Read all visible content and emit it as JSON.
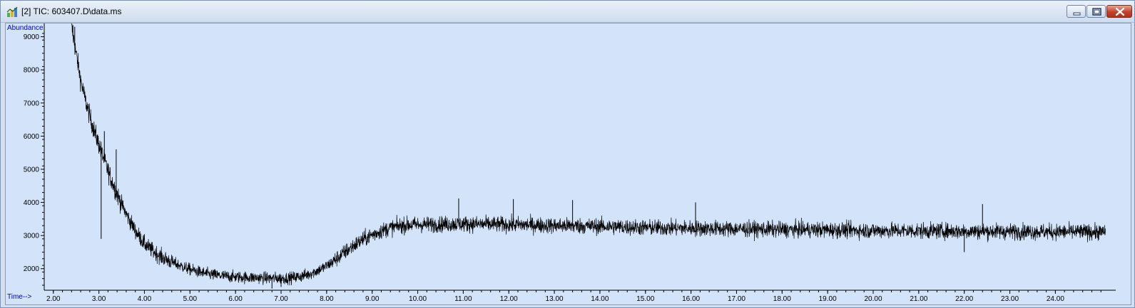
{
  "window": {
    "title": "[2] TIC: 603407.D\\data.ms",
    "controls": [
      "minimize",
      "maximize",
      "close"
    ]
  },
  "colors": {
    "plot_background": "#d3e3f9",
    "trace": "#000000",
    "axis_label": "#0000cc"
  },
  "chart_data": {
    "type": "line",
    "title": "",
    "xlabel": "Time-->",
    "ylabel": "Abundance",
    "xlim": [
      1.8,
      25.2
    ],
    "ylim": [
      1350,
      9400
    ],
    "x_ticks": [
      "2.00",
      "3.00",
      "4.00",
      "5.00",
      "6.00",
      "7.00",
      "8.00",
      "9.00",
      "10.00",
      "11.00",
      "12.00",
      "13.00",
      "14.00",
      "15.00",
      "16.00",
      "17.00",
      "18.00",
      "19.00",
      "20.00",
      "21.00",
      "22.00",
      "23.00",
      "24.00"
    ],
    "y_ticks": [
      "2000",
      "3000",
      "4000",
      "5000",
      "6000",
      "7000",
      "8000",
      "9000"
    ],
    "grid": false,
    "legend": "none",
    "series": [
      {
        "x": [
          2.4,
          2.5,
          2.6,
          2.7,
          2.8,
          2.9,
          3.0,
          3.1,
          3.2,
          3.3,
          3.4,
          3.5,
          3.6,
          3.7,
          3.8,
          3.9,
          4.0,
          4.2,
          4.4,
          4.6,
          4.8,
          5.0,
          5.2,
          5.4,
          5.6,
          5.8,
          6.0,
          6.2,
          6.4,
          6.6,
          6.8,
          7.0,
          7.2,
          7.4,
          7.6,
          7.8,
          8.0,
          8.2,
          8.4,
          8.6,
          8.8,
          9.0,
          9.2,
          9.4,
          9.6,
          9.8,
          10.0,
          10.5,
          11.0,
          11.5,
          12.0,
          12.5,
          13.0,
          13.5,
          14.0,
          14.5,
          15.0,
          15.5,
          16.0,
          16.5,
          17.0,
          17.5,
          18.0,
          18.5,
          19.0,
          19.5,
          20.0,
          20.5,
          21.0,
          21.5,
          22.0,
          22.5,
          23.0,
          23.5,
          24.0,
          24.5,
          25.1
        ],
        "y": [
          9300,
          8500,
          7700,
          7100,
          6600,
          6150,
          5750,
          5350,
          4950,
          4600,
          4250,
          3950,
          3650,
          3400,
          3150,
          2950,
          2750,
          2520,
          2330,
          2200,
          2080,
          1980,
          1900,
          1840,
          1800,
          1770,
          1750,
          1740,
          1730,
          1720,
          1715,
          1710,
          1720,
          1760,
          1830,
          1940,
          2080,
          2280,
          2500,
          2700,
          2880,
          3020,
          3140,
          3230,
          3290,
          3320,
          3330,
          3340,
          3350,
          3340,
          3330,
          3320,
          3300,
          3290,
          3280,
          3260,
          3240,
          3230,
          3220,
          3210,
          3200,
          3190,
          3180,
          3180,
          3170,
          3160,
          3150,
          3150,
          3140,
          3140,
          3130,
          3130,
          3120,
          3120,
          3110,
          3110,
          3100
        ],
        "noise": 230,
        "spikes": [
          [
            2.43,
            9350
          ],
          [
            2.47,
            9300
          ],
          [
            3.12,
            6150
          ],
          [
            3.38,
            5600
          ],
          [
            10.9,
            4120
          ],
          [
            12.1,
            4100
          ],
          [
            13.4,
            4070
          ],
          [
            16.1,
            4000
          ],
          [
            22.4,
            3950
          ],
          [
            3.05,
            2900
          ],
          [
            6.8,
            1400
          ],
          [
            7.0,
            1450
          ],
          [
            22.0,
            2500
          ]
        ]
      }
    ]
  }
}
